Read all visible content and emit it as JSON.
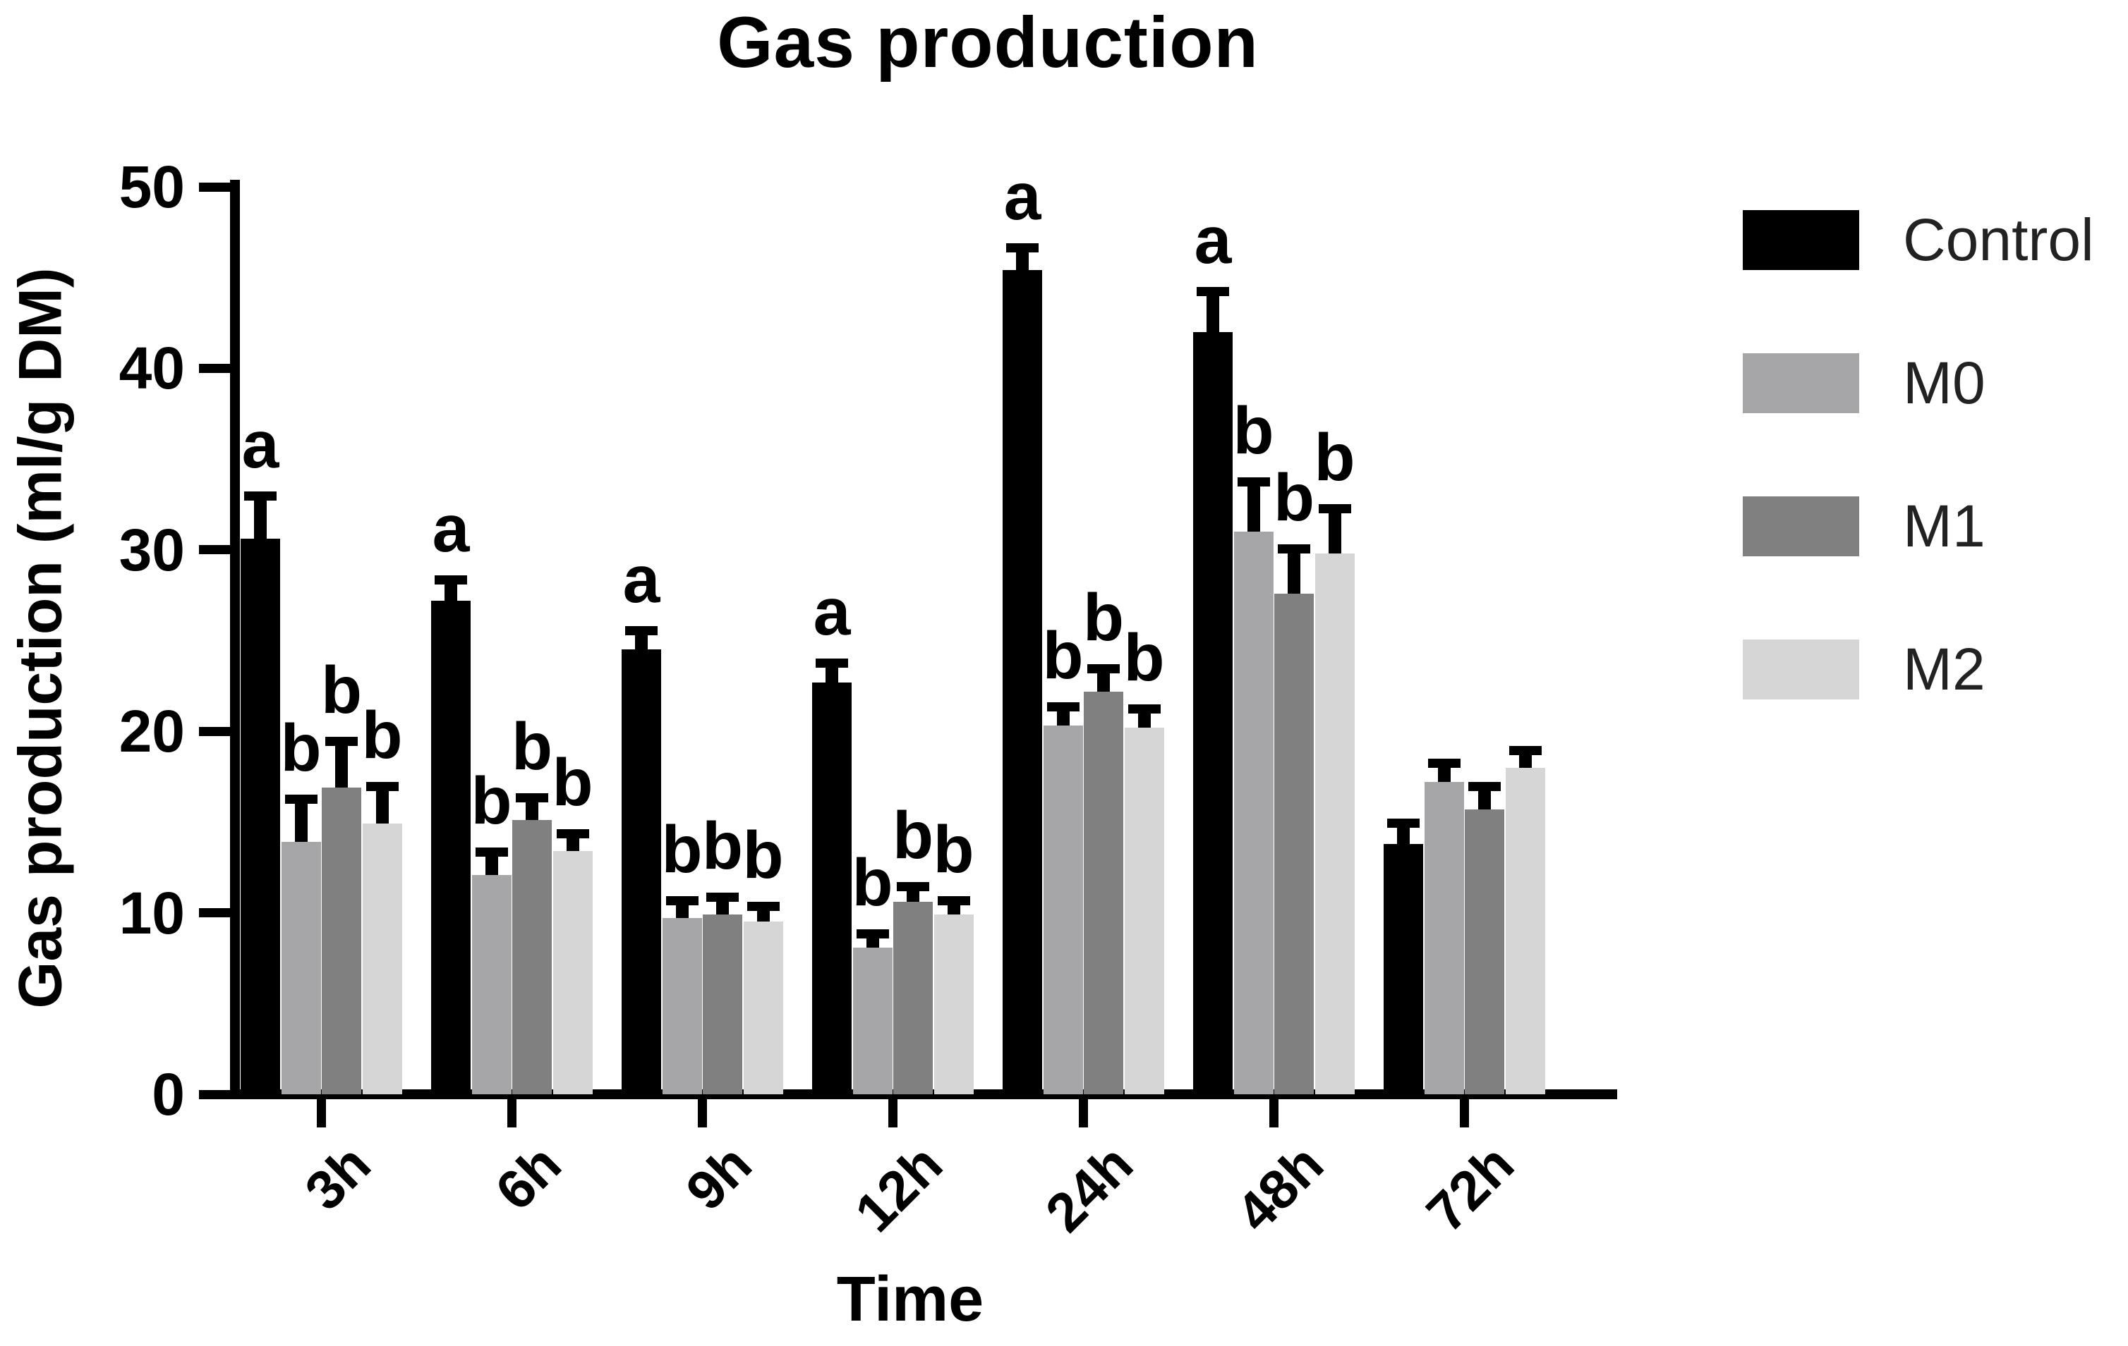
{
  "chart_data": {
    "type": "bar",
    "title": "Gas production",
    "xlabel": "Time",
    "ylabel": "Gas production (ml/g DM)",
    "ylim": [
      0,
      50
    ],
    "yticks": [
      0,
      10,
      20,
      30,
      40,
      50
    ],
    "grid": false,
    "legend_position": "right",
    "categories": [
      "3h",
      "6h",
      "9h",
      "12h",
      "24h",
      "48h",
      "72h"
    ],
    "series": [
      {
        "name": "Control",
        "color": "#000000",
        "values": [
          30.6,
          27.2,
          24.5,
          22.7,
          45.4,
          42.0,
          13.8
        ],
        "errors": [
          2.6,
          1.4,
          1.3,
          1.3,
          1.5,
          2.5,
          1.4
        ],
        "letters": [
          "a",
          "a",
          "a",
          "a",
          "a",
          "a",
          ""
        ]
      },
      {
        "name": "M0",
        "color": "#a6a6a9",
        "values": [
          13.9,
          12.1,
          9.7,
          8.1,
          20.3,
          31.0,
          17.2
        ],
        "errors": [
          2.6,
          1.5,
          1.2,
          1.0,
          1.3,
          3.0,
          1.3
        ],
        "letters": [
          "b",
          "b",
          "b",
          "b",
          "b",
          "b",
          ""
        ]
      },
      {
        "name": "M1",
        "color": "#808080",
        "values": [
          16.9,
          15.1,
          9.9,
          10.6,
          22.2,
          27.6,
          15.7
        ],
        "errors": [
          2.8,
          1.5,
          1.2,
          1.1,
          1.5,
          2.7,
          1.5
        ],
        "letters": [
          "b",
          "b",
          "b",
          "b",
          "b",
          "b",
          ""
        ]
      },
      {
        "name": "M2",
        "color": "#d6d6d6",
        "values": [
          14.9,
          13.4,
          9.5,
          9.9,
          20.2,
          29.8,
          18.0
        ],
        "errors": [
          2.3,
          1.2,
          1.1,
          1.0,
          1.3,
          2.7,
          1.2
        ],
        "letters": [
          "b",
          "b",
          "b",
          "b",
          "b",
          "b",
          ""
        ]
      }
    ]
  }
}
